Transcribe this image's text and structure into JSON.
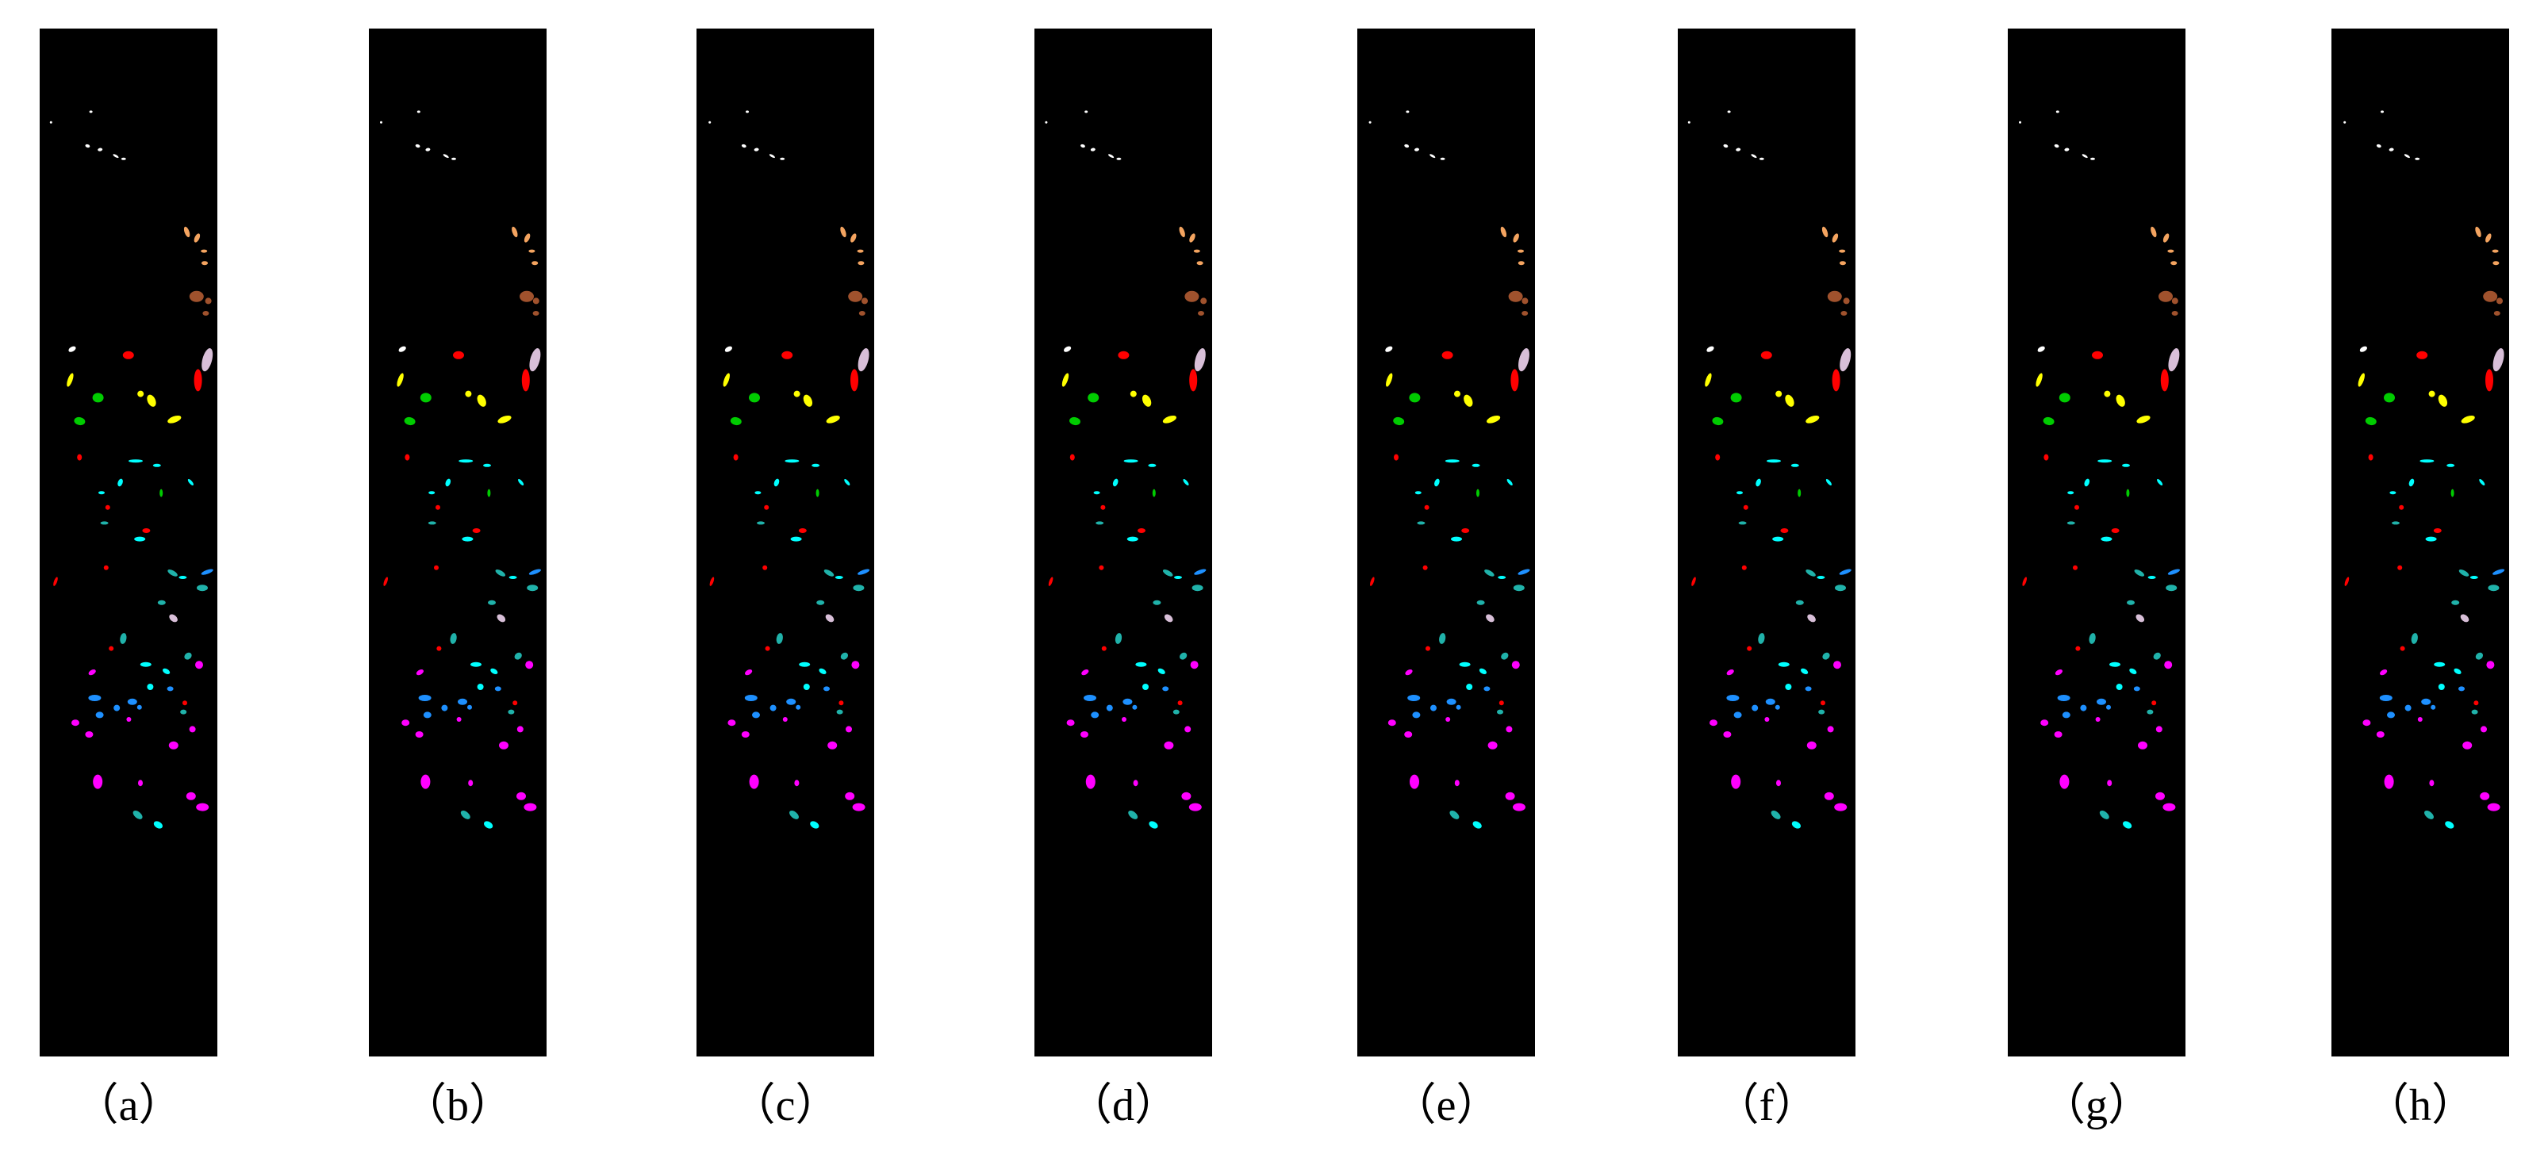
{
  "figure": {
    "panels": [
      {
        "id": "a",
        "label": "（a）"
      },
      {
        "id": "b",
        "label": "（b）"
      },
      {
        "id": "c",
        "label": "（c）"
      },
      {
        "id": "d",
        "label": "（d）"
      },
      {
        "id": "e",
        "label": "（e）"
      },
      {
        "id": "f",
        "label": "（f）"
      },
      {
        "id": "g",
        "label": "（g）"
      },
      {
        "id": "h",
        "label": "（h）"
      }
    ],
    "background_color": "#000000",
    "page_color": "#ffffff",
    "class_colors": [
      "#ffffff",
      "#f4a460",
      "#a0522d",
      "#ff0000",
      "#ffff00",
      "#00cc00",
      "#00ffff",
      "#20b2aa",
      "#ff00ff",
      "#d8bfd8",
      "#1e90ff",
      "#da70d6"
    ]
  }
}
